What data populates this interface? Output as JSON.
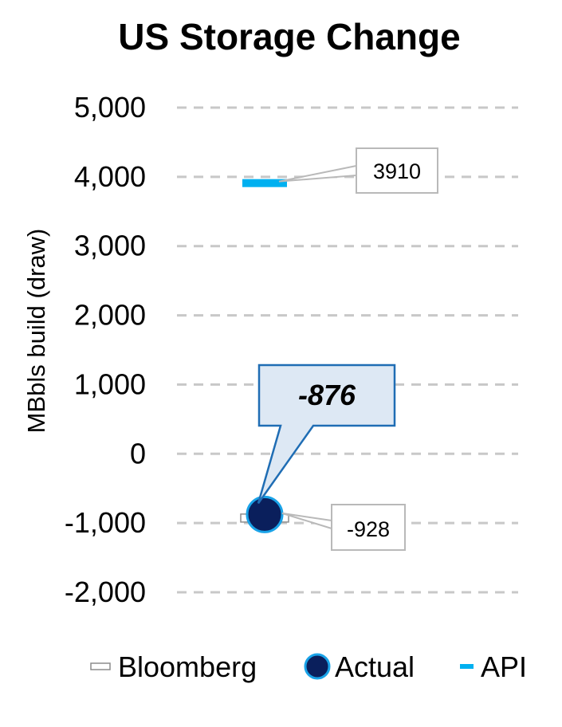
{
  "chart_data": {
    "type": "scatter",
    "title": "US Storage Change",
    "xlabel": "",
    "ylabel": "MBbls build (draw)",
    "ylim": [
      -2000,
      5000
    ],
    "yticks": [
      5000,
      4000,
      3000,
      2000,
      1000,
      0,
      -1000,
      -2000
    ],
    "ytick_labels": [
      "5,000",
      "4,000",
      "3,000",
      "2,000",
      "1,000",
      "0",
      "-1,000",
      "-2,000"
    ],
    "grid": true,
    "legend_position": "bottom",
    "series": [
      {
        "name": "Bloomberg",
        "values": [
          -928
        ],
        "marker": "dash",
        "color": "#ffffff",
        "edge_color": "#8c8c8c",
        "data_label": "-928"
      },
      {
        "name": "Actual",
        "values": [
          -876
        ],
        "marker": "circle",
        "color": "#0a1f5c",
        "edge_color": "#1aa3e8",
        "data_label": "-876"
      },
      {
        "name": "API",
        "values": [
          3910
        ],
        "marker": "dash",
        "color": "#00b0f0",
        "edge_color": "#00b0f0",
        "data_label": "3910"
      }
    ]
  }
}
